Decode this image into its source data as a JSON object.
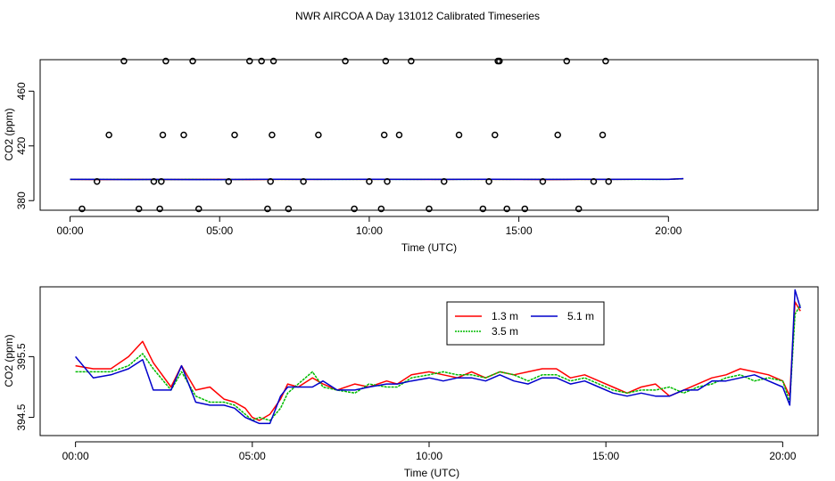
{
  "figure": {
    "title": "NWR AIRCOA A  Day 131012  Calibrated Timeseries"
  },
  "chart_data": [
    {
      "type": "scatter",
      "panel": "top",
      "xlabel": "Time (UTC)",
      "ylabel": "CO2 (ppm)",
      "xlim": [
        -1.0,
        25.0
      ],
      "ylim": [
        373,
        483
      ],
      "xticks": [
        0,
        5,
        10,
        15,
        20
      ],
      "xtick_labels": [
        "00:00",
        "05:00",
        "10:00",
        "15:00",
        "20:00"
      ],
      "yticks": [
        380,
        420,
        460
      ],
      "ytick_labels": [
        "380",
        "420",
        "460"
      ],
      "calibration_points": {
        "name": "calibration standards",
        "x": [
          0.4,
          0.9,
          1.3,
          1.8,
          2.3,
          2.8,
          3.0,
          3.05,
          3.1,
          3.2,
          3.8,
          4.1,
          4.3,
          5.3,
          5.5,
          6.0,
          6.4,
          6.6,
          6.7,
          6.75,
          6.8,
          7.3,
          7.8,
          8.3,
          9.2,
          9.5,
          10.0,
          10.4,
          10.5,
          10.55,
          10.6,
          11.0,
          11.4,
          12.0,
          12.5,
          13.0,
          13.8,
          14.0,
          14.2,
          14.3,
          14.35,
          14.6,
          15.2,
          15.8,
          16.3,
          16.6,
          17.0,
          17.5,
          17.8,
          17.9,
          18.0
        ],
        "y": [
          374,
          394,
          428,
          482,
          374,
          394,
          374,
          394,
          428,
          482,
          428,
          482,
          374,
          394,
          428,
          482,
          482,
          374,
          394,
          428,
          482,
          374,
          394,
          428,
          482,
          374,
          394,
          374,
          428,
          482,
          394,
          428,
          482,
          374,
          394,
          428,
          374,
          394,
          428,
          482,
          482,
          374,
          374,
          394,
          428,
          482,
          374,
          394,
          428,
          482,
          394
        ]
      },
      "series": [
        {
          "name": "1.3 m",
          "color": "#ff0000",
          "x": [
            0,
            1,
            2,
            3,
            4,
            5,
            6,
            7,
            8,
            9,
            10,
            11,
            12,
            13,
            14,
            15,
            16,
            17,
            18,
            19,
            20,
            20.5
          ],
          "values": [
            395.5,
            395.4,
            395.6,
            395.4,
            395.5,
            395.5,
            395.4,
            395.5,
            395.5,
            395.6,
            395.5,
            395.6,
            395.5,
            395.6,
            395.5,
            395.5,
            395.4,
            395.5,
            395.5,
            395.6,
            395.6,
            396.0
          ]
        },
        {
          "name": "3.5 m",
          "color": "#00bb00",
          "x": [
            0,
            1,
            2,
            3,
            4,
            5,
            6,
            7,
            8,
            9,
            10,
            11,
            12,
            13,
            14,
            15,
            16,
            17,
            18,
            19,
            20,
            20.5
          ],
          "values": [
            395.5,
            395.5,
            395.5,
            395.4,
            395.5,
            395.4,
            395.5,
            395.5,
            395.6,
            395.5,
            395.5,
            395.5,
            395.6,
            395.5,
            395.5,
            395.6,
            395.5,
            395.5,
            395.5,
            395.5,
            395.6,
            396.0
          ]
        },
        {
          "name": "5.1 m",
          "color": "#0000cc",
          "x": [
            0,
            1,
            2,
            3,
            4,
            5,
            6,
            7,
            8,
            9,
            10,
            11,
            12,
            13,
            14,
            15,
            16,
            17,
            18,
            19,
            20,
            20.5
          ],
          "values": [
            395.5,
            395.5,
            395.4,
            395.5,
            395.4,
            395.4,
            395.5,
            395.6,
            395.5,
            395.5,
            395.6,
            395.5,
            395.5,
            395.5,
            395.6,
            395.5,
            395.5,
            395.6,
            395.5,
            395.6,
            395.5,
            396.1
          ]
        }
      ]
    },
    {
      "type": "line",
      "panel": "bottom",
      "xlabel": "Time (UTC)",
      "ylabel": "CO2 (ppm)",
      "xlim": [
        -1.0,
        21.0
      ],
      "ylim": [
        394.2,
        396.65
      ],
      "xticks": [
        0,
        5,
        10,
        15,
        20
      ],
      "xtick_labels": [
        "00:00",
        "05:00",
        "10:00",
        "15:00",
        "20:00"
      ],
      "yticks": [
        394.5,
        395.5
      ],
      "ytick_labels": [
        "394.5",
        "395.5"
      ],
      "legend": {
        "position": "top-center",
        "entries": [
          "1.3 m",
          "3.5 m",
          "5.1 m"
        ]
      },
      "x": [
        0.0,
        0.5,
        1.0,
        1.5,
        1.9,
        2.2,
        2.7,
        3.0,
        3.4,
        3.8,
        4.2,
        4.5,
        4.8,
        5.0,
        5.2,
        5.5,
        5.8,
        6.0,
        6.3,
        6.7,
        7.0,
        7.4,
        7.9,
        8.3,
        8.8,
        9.1,
        9.5,
        10.0,
        10.4,
        10.8,
        11.2,
        11.6,
        12.0,
        12.4,
        12.8,
        13.2,
        13.6,
        14.0,
        14.4,
        14.8,
        15.2,
        15.6,
        16.0,
        16.4,
        16.8,
        17.2,
        17.6,
        18.0,
        18.4,
        18.8,
        19.2,
        19.6,
        20.0,
        20.2,
        20.35,
        20.5
      ],
      "series": [
        {
          "name": "1.3 m",
          "color": "#ff0000",
          "values": [
            395.35,
            395.3,
            395.3,
            395.5,
            395.75,
            395.4,
            395.0,
            395.35,
            394.95,
            395.0,
            394.8,
            394.75,
            394.65,
            394.5,
            394.45,
            394.55,
            394.8,
            395.05,
            395.0,
            395.15,
            395.05,
            394.95,
            395.05,
            395.0,
            395.1,
            395.05,
            395.2,
            395.25,
            395.2,
            395.15,
            395.25,
            395.15,
            395.25,
            395.2,
            395.25,
            395.3,
            395.3,
            395.15,
            395.2,
            395.1,
            395.0,
            394.9,
            395.0,
            395.05,
            394.85,
            394.95,
            395.05,
            395.15,
            395.2,
            395.3,
            395.25,
            395.2,
            395.1,
            394.85,
            396.4,
            396.25
          ]
        },
        {
          "name": "3.5 m",
          "color": "#00bb00",
          "values": [
            395.25,
            395.25,
            395.25,
            395.35,
            395.55,
            395.3,
            394.95,
            395.25,
            394.85,
            394.75,
            394.75,
            394.7,
            394.55,
            394.45,
            394.5,
            394.45,
            394.65,
            394.9,
            395.05,
            395.25,
            395.0,
            394.95,
            394.9,
            395.05,
            395.0,
            395.0,
            395.15,
            395.2,
            395.25,
            395.2,
            395.2,
            395.15,
            395.25,
            395.2,
            395.1,
            395.2,
            395.2,
            395.1,
            395.15,
            395.05,
            394.95,
            394.9,
            394.95,
            394.95,
            395.0,
            394.9,
            395.0,
            395.05,
            395.15,
            395.2,
            395.1,
            395.15,
            395.1,
            394.75,
            396.2,
            396.35
          ]
        },
        {
          "name": "5.1 m",
          "color": "#0000cc",
          "values": [
            395.5,
            395.15,
            395.2,
            395.3,
            395.45,
            394.95,
            394.95,
            395.35,
            394.75,
            394.7,
            394.7,
            394.65,
            394.5,
            394.45,
            394.4,
            394.4,
            394.85,
            395.0,
            395.0,
            395.0,
            395.1,
            394.95,
            394.95,
            395.0,
            395.05,
            395.05,
            395.1,
            395.15,
            395.1,
            395.15,
            395.15,
            395.1,
            395.2,
            395.1,
            395.05,
            395.15,
            395.15,
            395.05,
            395.1,
            395.0,
            394.9,
            394.85,
            394.9,
            394.85,
            394.85,
            394.95,
            394.95,
            395.1,
            395.1,
            395.15,
            395.2,
            395.1,
            395.0,
            394.7,
            396.6,
            396.3
          ]
        }
      ]
    }
  ]
}
